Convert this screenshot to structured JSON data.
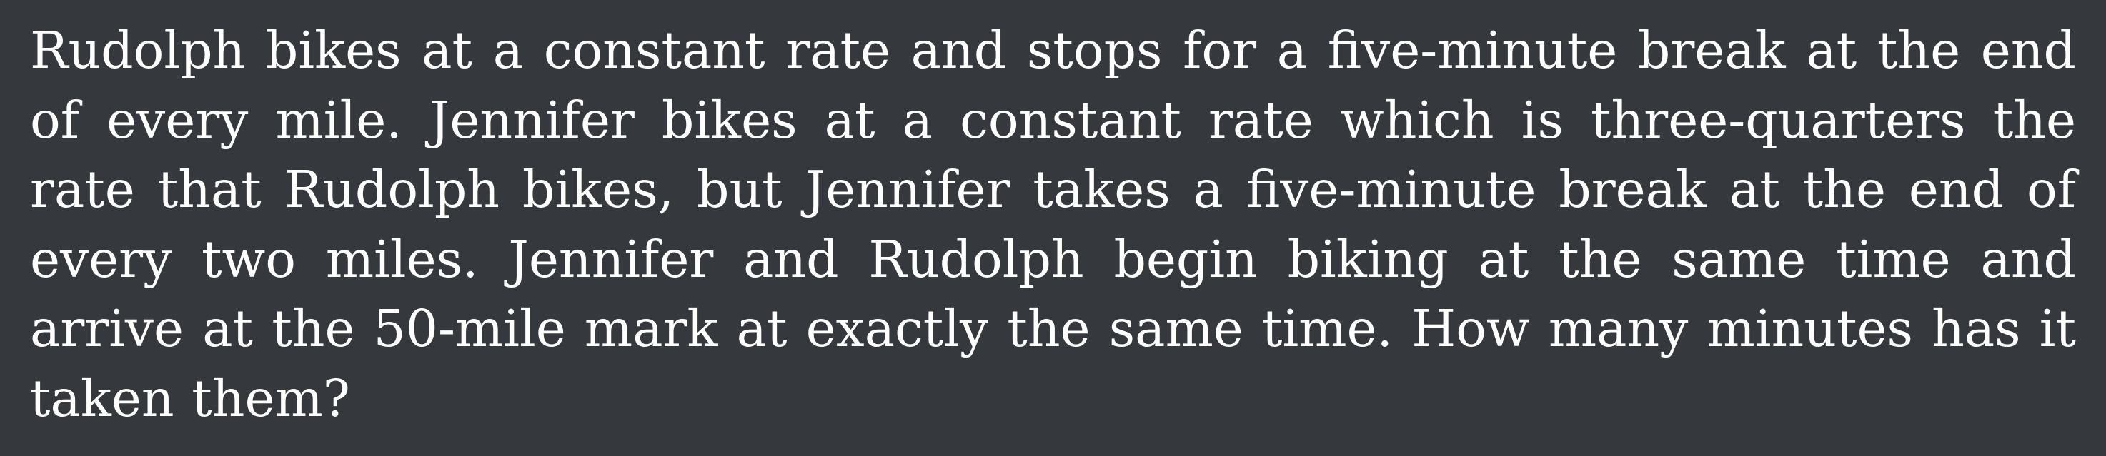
{
  "problem": {
    "text": "Rudolph bikes at a constant rate and stops for a five-minute break at the end of every mile. Jennifer bikes at a constant rate which is three-quarters the rate that Rudolph bikes, but Jennifer takes a five-minute break at the end of every two miles. Jennifer and Rudolph begin biking at the same time and arrive at the 50-mile mark at exactly the same time. How many minutes has it taken them?"
  },
  "colors": {
    "background": "#35383d",
    "text": "#ffffff"
  }
}
